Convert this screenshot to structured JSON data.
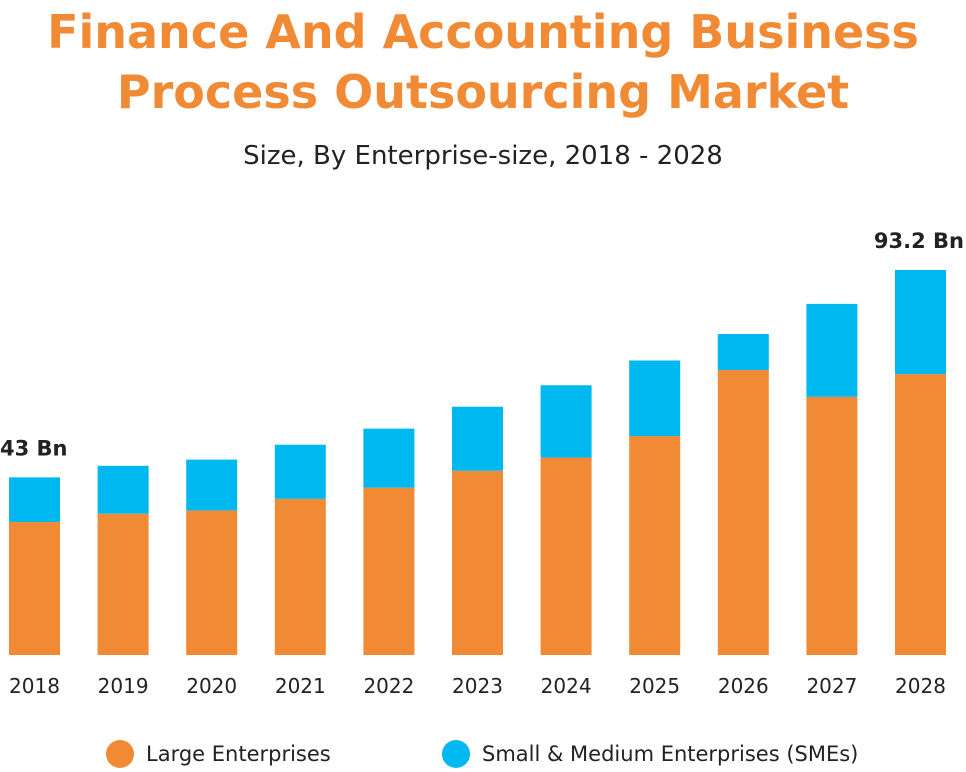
{
  "header": {
    "title_line1": "Finance And Accounting Business",
    "title_line2": "Process Outsourcing Market",
    "subtitle": "Size, By Enterprise-size, 2018 - 2028"
  },
  "colors": {
    "title": "#f08a35",
    "large": "#f08a35",
    "sme": "#00b8f0",
    "text": "#222222"
  },
  "chart_data": {
    "type": "bar",
    "stacked": true,
    "title": "Finance And Accounting Business Process Outsourcing Market",
    "subtitle": "Size, By Enterprise-size, 2018 - 2028",
    "categories": [
      "2018",
      "2019",
      "2020",
      "2021",
      "2022",
      "2023",
      "2024",
      "2025",
      "2026",
      "2027",
      "2028"
    ],
    "series": [
      {
        "name": "Large Enterprises",
        "values": [
          32.2,
          34.2,
          35.0,
          37.8,
          40.5,
          44.6,
          47.8,
          53.0,
          69.0,
          62.5,
          68.0
        ]
      },
      {
        "name": "Small & Medium Enterprises (SMEs)",
        "values": [
          10.8,
          11.6,
          12.3,
          13.1,
          14.3,
          15.5,
          17.5,
          18.3,
          8.7,
          22.5,
          25.2
        ]
      }
    ],
    "annotations": [
      {
        "category": "2018",
        "text": "43 Bn"
      },
      {
        "category": "2028",
        "text": "93.2 Bn"
      }
    ],
    "ylim": [
      0,
      93.2
    ],
    "grid": false,
    "legend_placement": "bottom",
    "xlabel": "",
    "ylabel": ""
  }
}
